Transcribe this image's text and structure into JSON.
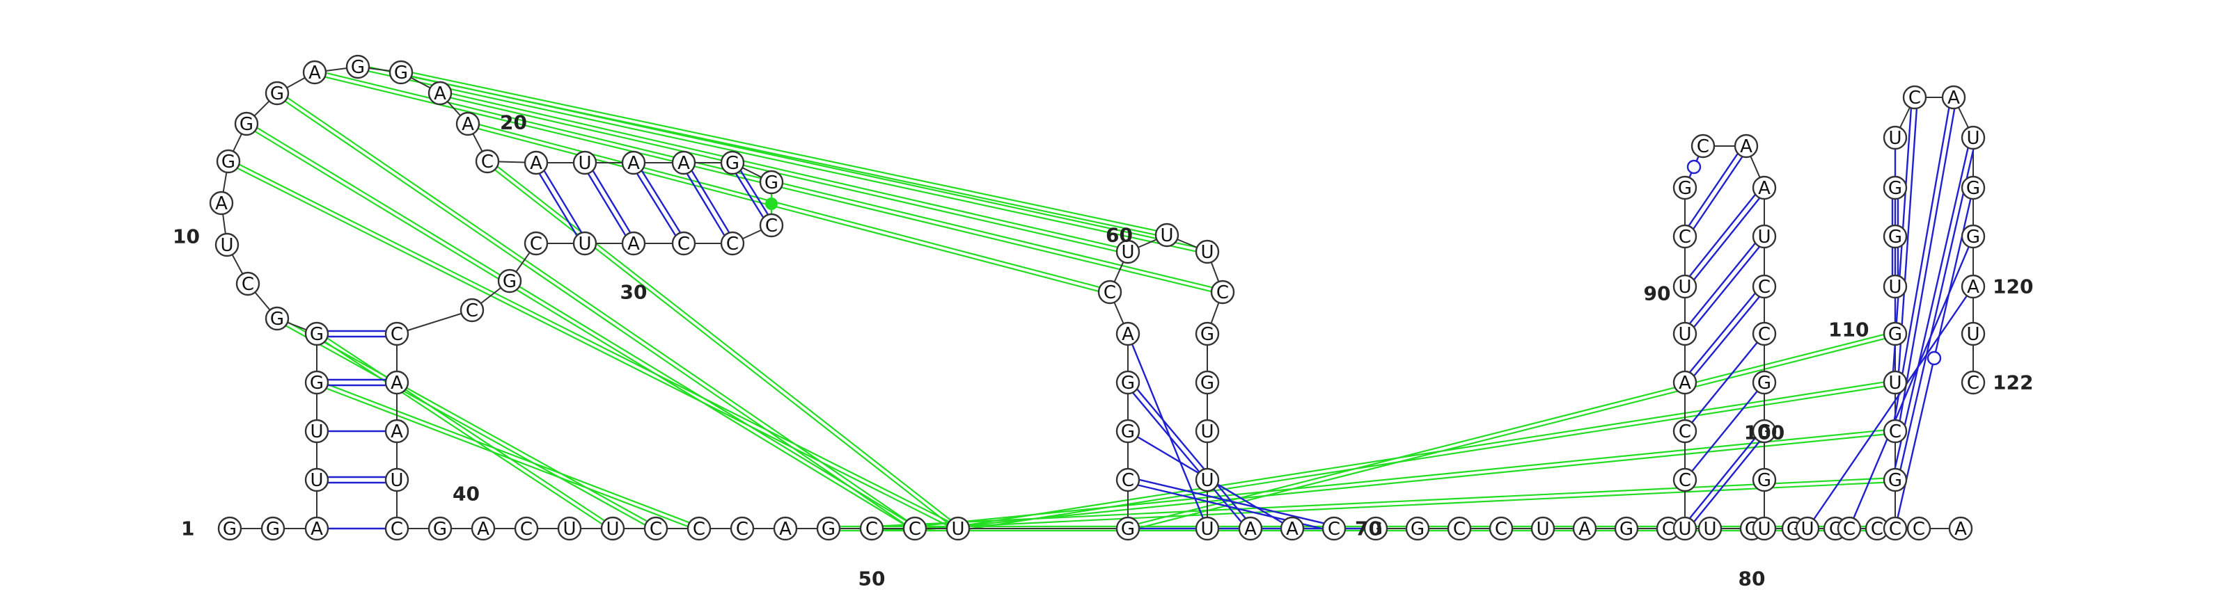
{
  "sequence": "GGAUUGGGCUAGGGAGGAACAUAAGGCCCAUCGCCAAUCGACUUCCCAGCCUGCGGACUUUCGGUUUAACGGCCUAGCUGGCCCAUCCAUUCGCAAUCCGGGUUCCGCUGUGGUCAUGGAUC",
  "colors": {
    "canonical_pair": "#2020d0",
    "gu_pair": "#2020d0",
    "pseudoknot": "#22dd22",
    "backbone": "#333333"
  },
  "number_labels": [
    {
      "index": 1,
      "text": "1"
    },
    {
      "index": 10,
      "text": "10"
    },
    {
      "index": 20,
      "text": "20"
    },
    {
      "index": 30,
      "text": "30"
    },
    {
      "index": 40,
      "text": "40"
    },
    {
      "index": 50,
      "text": "50"
    },
    {
      "index": 60,
      "text": "60"
    },
    {
      "index": 70,
      "text": "70"
    },
    {
      "index": 80,
      "text": "80"
    },
    {
      "index": 90,
      "text": "90"
    },
    {
      "index": 100,
      "text": "100"
    },
    {
      "index": 110,
      "text": "110"
    },
    {
      "index": 120,
      "text": "120"
    },
    {
      "index": 122,
      "text": "122"
    }
  ],
  "base_pairs": [
    {
      "i": 3,
      "j": 39,
      "type": "single"
    },
    {
      "i": 4,
      "j": 38,
      "type": "double"
    },
    {
      "i": 5,
      "j": 37,
      "type": "single"
    },
    {
      "i": 6,
      "j": 36,
      "type": "double"
    },
    {
      "i": 7,
      "j": 35,
      "type": "double"
    },
    {
      "i": 21,
      "j": 31,
      "type": "double"
    },
    {
      "i": 22,
      "j": 30,
      "type": "double"
    },
    {
      "i": 23,
      "j": 29,
      "type": "double"
    },
    {
      "i": 24,
      "j": 28,
      "type": "double"
    },
    {
      "i": 25,
      "j": 27,
      "type": "double"
    },
    {
      "i": 26,
      "j": 26,
      "type": "none"
    },
    {
      "i": 53,
      "j": 71,
      "type": "single"
    },
    {
      "i": 54,
      "j": 70,
      "type": "double"
    },
    {
      "i": 55,
      "j": 69,
      "type": "single"
    },
    {
      "i": 56,
      "j": 68,
      "type": "double"
    },
    {
      "i": 57,
      "j": 67,
      "type": "single"
    },
    {
      "i": 86,
      "j": 101,
      "type": "double"
    },
    {
      "i": 87,
      "j": 100,
      "type": "single"
    },
    {
      "i": 88,
      "j": 99,
      "type": "single"
    },
    {
      "i": 89,
      "j": 98,
      "type": "double"
    },
    {
      "i": 90,
      "j": 97,
      "type": "double"
    },
    {
      "i": 91,
      "j": 96,
      "type": "double"
    },
    {
      "i": 92,
      "j": 95,
      "type": "double"
    },
    {
      "i": 93,
      "j": 94,
      "type": "wobble"
    },
    {
      "i": 104,
      "j": 120,
      "type": "single"
    },
    {
      "i": 105,
      "j": 119,
      "type": "single"
    },
    {
      "i": 106,
      "j": 118,
      "type": "wobble"
    },
    {
      "i": 107,
      "j": 117,
      "type": "double"
    },
    {
      "i": 108,
      "j": 116,
      "type": "double"
    },
    {
      "i": 109,
      "j": 115,
      "type": "double"
    },
    {
      "i": 110,
      "j": 114,
      "type": "wobble"
    },
    {
      "i": 111,
      "j": 113,
      "type": "double"
    },
    {
      "i": 112,
      "j": 112,
      "type": "none"
    }
  ],
  "special_pairs": [
    {
      "a": 26,
      "b": 27,
      "type": "dot"
    }
  ],
  "pseudoknots": [
    {
      "i": 15,
      "j": 62
    },
    {
      "i": 16,
      "j": 61
    },
    {
      "i": 17,
      "j": 60
    },
    {
      "i": 18,
      "j": 59
    },
    {
      "i": 19,
      "j": 58
    },
    {
      "i": 20,
      "j": 52
    },
    {
      "i": 12,
      "j": 52
    },
    {
      "i": 13,
      "j": 51
    },
    {
      "i": 14,
      "j": 51
    },
    {
      "i": 8,
      "j": 45
    },
    {
      "i": 6,
      "j": 46
    },
    {
      "i": 7,
      "j": 44
    },
    {
      "i": 49,
      "j": 106
    },
    {
      "i": 50,
      "j": 107
    },
    {
      "i": 51,
      "j": 108
    },
    {
      "i": 52,
      "j": 109
    },
    {
      "i": 53,
      "j": 110
    }
  ]
}
